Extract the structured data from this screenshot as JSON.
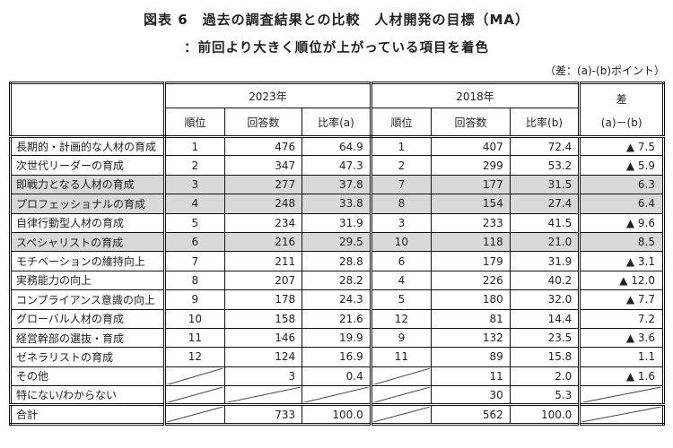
{
  "header": {
    "title": "図表 6　過去の調査結果との比較　人材開発の目標（MA）",
    "subtitle": "：前回より大きく順位が上がっている項目を着色",
    "note": "（差：(a)-(b)ポイント）"
  },
  "table": {
    "colors": {
      "shaded_row": "#d9d9d9",
      "border": "#111111"
    },
    "group_headers": {
      "y2023": "2023年",
      "y2018": "2018年",
      "diff": "差"
    },
    "sub_headers": {
      "rank": "順位",
      "count": "回答数",
      "ratio_a": "比率(a)",
      "ratio_b": "比率(b)",
      "diff_formula": "(a)－(b)"
    },
    "rows": [
      {
        "label": "長期的・計画的な人材の育成",
        "r23": "1",
        "n23": "476",
        "p23": "64.9",
        "r18": "1",
        "n18": "407",
        "p18": "72.4",
        "diff": "▲ 7.5",
        "shaded": false,
        "total": false
      },
      {
        "label": "次世代リーダーの育成",
        "r23": "2",
        "n23": "347",
        "p23": "47.3",
        "r18": "2",
        "n18": "299",
        "p18": "53.2",
        "diff": "▲ 5.9",
        "shaded": false,
        "total": false
      },
      {
        "label": "即戦力となる人材の育成",
        "r23": "3",
        "n23": "277",
        "p23": "37.8",
        "r18": "7",
        "n18": "177",
        "p18": "31.5",
        "diff": "6.3",
        "shaded": true,
        "total": false
      },
      {
        "label": "プロフェッショナルの育成",
        "r23": "4",
        "n23": "248",
        "p23": "33.8",
        "r18": "8",
        "n18": "154",
        "p18": "27.4",
        "diff": "6.4",
        "shaded": true,
        "total": false
      },
      {
        "label": "自律行動型人材の育成",
        "r23": "5",
        "n23": "234",
        "p23": "31.9",
        "r18": "3",
        "n18": "233",
        "p18": "41.5",
        "diff": "▲ 9.6",
        "shaded": false,
        "total": false
      },
      {
        "label": "スペシャリストの育成",
        "r23": "6",
        "n23": "216",
        "p23": "29.5",
        "r18": "10",
        "n18": "118",
        "p18": "21.0",
        "diff": "8.5",
        "shaded": true,
        "total": false
      },
      {
        "label": "モチベーションの維持向上",
        "r23": "7",
        "n23": "211",
        "p23": "28.8",
        "r18": "6",
        "n18": "179",
        "p18": "31.9",
        "diff": "▲ 3.1",
        "shaded": false,
        "total": false
      },
      {
        "label": "実務能力の向上",
        "r23": "8",
        "n23": "207",
        "p23": "28.2",
        "r18": "4",
        "n18": "226",
        "p18": "40.2",
        "diff": "▲ 12.0",
        "shaded": false,
        "total": false
      },
      {
        "label": "コンプライアンス意識の向上",
        "r23": "9",
        "n23": "178",
        "p23": "24.3",
        "r18": "5",
        "n18": "180",
        "p18": "32.0",
        "diff": "▲ 7.7",
        "shaded": false,
        "total": false
      },
      {
        "label": "グローバル人材の育成",
        "r23": "10",
        "n23": "158",
        "p23": "21.6",
        "r18": "12",
        "n18": "81",
        "p18": "14.4",
        "diff": "7.2",
        "shaded": false,
        "total": false
      },
      {
        "label": "経営幹部の選抜・育成",
        "r23": "11",
        "n23": "146",
        "p23": "19.9",
        "r18": "9",
        "n18": "132",
        "p18": "23.5",
        "diff": "▲ 3.6",
        "shaded": false,
        "total": false
      },
      {
        "label": "ゼネラリストの育成",
        "r23": "12",
        "n23": "124",
        "p23": "16.9",
        "r18": "11",
        "n18": "89",
        "p18": "15.8",
        "diff": "1.1",
        "shaded": false,
        "total": false
      },
      {
        "label": "その他",
        "r23": null,
        "n23": "3",
        "p23": "0.4",
        "r18": null,
        "n18": "11",
        "p18": "2.0",
        "diff": "▲ 1.6",
        "shaded": false,
        "total": false
      },
      {
        "label": "特にない/わからない",
        "r23": null,
        "n23": null,
        "p23": null,
        "r18": null,
        "n18": "30",
        "p18": "5.3",
        "diff": null,
        "shaded": false,
        "total": false
      },
      {
        "label": "合計",
        "r23": null,
        "n23": "733",
        "p23": "100.0",
        "r18": null,
        "n18": "562",
        "p18": "100.0",
        "diff": null,
        "shaded": false,
        "total": true
      }
    ]
  }
}
